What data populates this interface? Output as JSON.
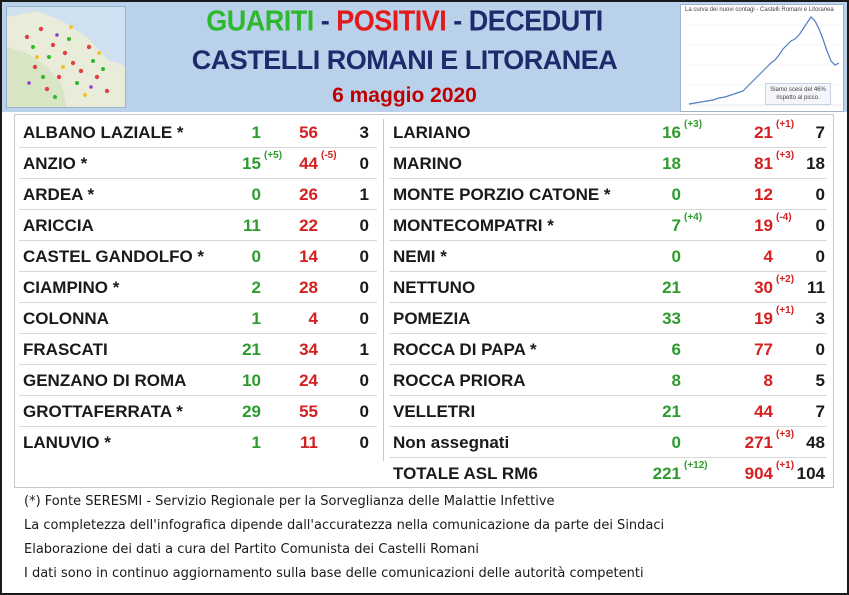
{
  "header": {
    "title_guariti": "GUARITI",
    "title_sep1": " - ",
    "title_positivi": "POSITIVI",
    "title_sep2": " - ",
    "title_deceduti": "DECEDUTI",
    "subtitle": "CASTELLI ROMANI E LITORANEA",
    "date": "6 maggio 2020",
    "chart_thumb_title": "La curva dei nuovi contagi - Castelli Romani e Litoranea",
    "chart_thumb_note": "Siamo scesi del 46% rispetto al picco."
  },
  "colors": {
    "guariti": "#2eb82e",
    "positivi": "#e31a1a",
    "deceduti": "#1d2a6b",
    "header_bg": "#b9d1ea"
  },
  "left_rows": [
    {
      "name": "ALBANO LAZIALE *",
      "guariti": "1",
      "guariti_delta": "",
      "positivi": "56",
      "positivi_delta": "",
      "deceduti": "3"
    },
    {
      "name": "ANZIO *",
      "guariti": "15",
      "guariti_delta": "(+5)",
      "positivi": "44",
      "positivi_delta": "(-5)",
      "deceduti": "0"
    },
    {
      "name": "ARDEA *",
      "guariti": "0",
      "guariti_delta": "",
      "positivi": "26",
      "positivi_delta": "",
      "deceduti": "1"
    },
    {
      "name": "ARICCIA",
      "guariti": "11",
      "guariti_delta": "",
      "positivi": "22",
      "positivi_delta": "",
      "deceduti": "0"
    },
    {
      "name": "CASTEL GANDOLFO *",
      "guariti": "0",
      "guariti_delta": "",
      "positivi": "14",
      "positivi_delta": "",
      "deceduti": "0"
    },
    {
      "name": "CIAMPINO *",
      "guariti": "2",
      "guariti_delta": "",
      "positivi": "28",
      "positivi_delta": "",
      "deceduti": "0"
    },
    {
      "name": "COLONNA",
      "guariti": "1",
      "guariti_delta": "",
      "positivi": "4",
      "positivi_delta": "",
      "deceduti": "0"
    },
    {
      "name": "FRASCATI",
      "guariti": "21",
      "guariti_delta": "",
      "positivi": "34",
      "positivi_delta": "",
      "deceduti": "1"
    },
    {
      "name": "GENZANO DI ROMA",
      "guariti": "10",
      "guariti_delta": "",
      "positivi": "24",
      "positivi_delta": "",
      "deceduti": "0"
    },
    {
      "name": "GROTTAFERRATA *",
      "guariti": "29",
      "guariti_delta": "",
      "positivi": "55",
      "positivi_delta": "",
      "deceduti": "0"
    },
    {
      "name": "LANUVIO *",
      "guariti": "1",
      "guariti_delta": "",
      "positivi": "11",
      "positivi_delta": "",
      "deceduti": "0"
    }
  ],
  "right_rows": [
    {
      "name": "LARIANO",
      "guariti": "16",
      "guariti_delta": "(+3)",
      "positivi": "21",
      "positivi_delta": "(+1)",
      "deceduti": "7"
    },
    {
      "name": "MARINO",
      "guariti": "18",
      "guariti_delta": "",
      "positivi": "81",
      "positivi_delta": "(+3)",
      "deceduti": "18"
    },
    {
      "name": "MONTE PORZIO CATONE *",
      "guariti": "0",
      "guariti_delta": "",
      "positivi": "12",
      "positivi_delta": "",
      "deceduti": "0"
    },
    {
      "name": "MONTECOMPATRI *",
      "guariti": "7",
      "guariti_delta": "(+4)",
      "positivi": "19",
      "positivi_delta": "(-4)",
      "deceduti": "0"
    },
    {
      "name": "NEMI *",
      "guariti": "0",
      "guariti_delta": "",
      "positivi": "4",
      "positivi_delta": "",
      "deceduti": "0"
    },
    {
      "name": "NETTUNO",
      "guariti": "21",
      "guariti_delta": "",
      "positivi": "30",
      "positivi_delta": "(+2)",
      "deceduti": "11"
    },
    {
      "name": "POMEZIA",
      "guariti": "33",
      "guariti_delta": "",
      "positivi": "19",
      "positivi_delta": "(+1)",
      "deceduti": "3"
    },
    {
      "name": "ROCCA DI PAPA *",
      "guariti": "6",
      "guariti_delta": "",
      "positivi": "77",
      "positivi_delta": "",
      "deceduti": "0"
    },
    {
      "name": "ROCCA PRIORA",
      "guariti": "8",
      "guariti_delta": "",
      "positivi": "8",
      "positivi_delta": "",
      "deceduti": "5"
    },
    {
      "name": "VELLETRI",
      "guariti": "21",
      "guariti_delta": "",
      "positivi": "44",
      "positivi_delta": "",
      "deceduti": "7"
    },
    {
      "name": "Non assegnati",
      "guariti": "0",
      "guariti_delta": "",
      "positivi": "271",
      "positivi_delta": "(+3)",
      "deceduti": "48"
    },
    {
      "name": "TOTALE ASL RM6",
      "guariti": "221",
      "guariti_delta": "(+12)",
      "positivi": "904",
      "positivi_delta": "(+1)",
      "deceduti": "104"
    }
  ],
  "footer": {
    "line1": "(*) Fonte SERESMI - Servizio Regionale per la Sorveglianza delle Malattie Infettive",
    "line2": "La completezza dell'infografica dipende dall'accuratezza nella comunicazione da parte dei Sindaci",
    "line3": "Elaborazione dei dati a cura del Partito Comunista dei Castelli Romani",
    "line4": "I dati sono in continuo aggiornamento sulla base delle comunicazioni delle autorità competenti"
  }
}
